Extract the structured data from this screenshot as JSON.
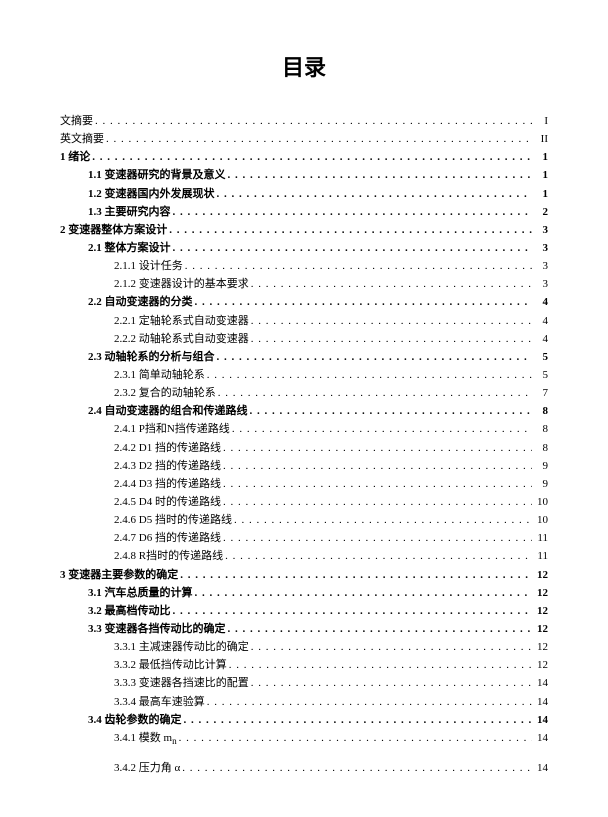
{
  "title": "目录",
  "entries": [
    {
      "label": "文摘要",
      "page": "I",
      "level": "lvl0nb"
    },
    {
      "label": "英文摘要",
      "page": "II",
      "level": "lvl0nb"
    },
    {
      "label": "1 绪论",
      "page": "1",
      "level": "lvl0"
    },
    {
      "label": "1.1 变速器研究的背景及意义",
      "page": "1",
      "level": "lvl1"
    },
    {
      "label": "1.2 变速器国内外发展现状",
      "page": "1",
      "level": "lvl1"
    },
    {
      "label": "1.3 主要研究内容",
      "page": "2",
      "level": "lvl1"
    },
    {
      "label": "2 变速器整体方案设计",
      "page": "3",
      "level": "lvl0"
    },
    {
      "label": "2.1 整体方案设计",
      "page": "3",
      "level": "lvl1"
    },
    {
      "label": "2.1.1 设计任务",
      "page": "3",
      "level": "lvl2"
    },
    {
      "label": "2.1.2 变速器设计的基本要求",
      "page": "3",
      "level": "lvl2"
    },
    {
      "label": "2.2 自动变速器的分类",
      "page": "4",
      "level": "lvl1"
    },
    {
      "label": "2.2.1 定轴轮系式自动变速器",
      "page": "4",
      "level": "lvl2"
    },
    {
      "label": "2.2.2 动轴轮系式自动变速器",
      "page": "4",
      "level": "lvl2"
    },
    {
      "label": "2.3 动轴轮系的分析与组合",
      "page": "5",
      "level": "lvl1"
    },
    {
      "label": "2.3.1 简单动轴轮系",
      "page": "5",
      "level": "lvl2"
    },
    {
      "label": "2.3.2 复合的动轴轮系",
      "page": "7",
      "level": "lvl2"
    },
    {
      "label": "2.4 自动变速器的组合和传递路线",
      "page": "8",
      "level": "lvl1"
    },
    {
      "label": "2.4.1 P挡和N挡传递路线",
      "page": "8",
      "level": "lvl2"
    },
    {
      "label": "2.4.2 D1 挡的传递路线",
      "page": "8",
      "level": "lvl2"
    },
    {
      "label": "2.4.3 D2 挡的传递路线",
      "page": "9",
      "level": "lvl2"
    },
    {
      "label": "2.4.4 D3 挡的传递路线",
      "page": "9",
      "level": "lvl2"
    },
    {
      "label": "2.4.5 D4 时的传递路线",
      "page": "10",
      "level": "lvl2"
    },
    {
      "label": "2.4.6 D5 挡时的传递路线",
      "page": "10",
      "level": "lvl2"
    },
    {
      "label": "2.4.7 D6 挡的传递路线",
      "page": "11",
      "level": "lvl2"
    },
    {
      "label": "2.4.8 R挡时的传递路线",
      "page": "11",
      "level": "lvl2"
    },
    {
      "label": "3 变速器主要参数的确定",
      "page": "12",
      "level": "lvl0"
    },
    {
      "label": "3.1 汽车总质量的计算",
      "page": "12",
      "level": "lvl1"
    },
    {
      "label": "3.2 最高档传动比",
      "page": "12",
      "level": "lvl1"
    },
    {
      "label": "3.3 变速器各挡传动比的确定",
      "page": "12",
      "level": "lvl1"
    },
    {
      "label": "3.3.1 主减速器传动比的确定",
      "page": "12",
      "level": "lvl2"
    },
    {
      "label": "3.3.2 最低挡传动比计算",
      "page": "12",
      "level": "lvl2"
    },
    {
      "label": "3.3.3 变速器各挡速比的配置",
      "page": "14",
      "level": "lvl2"
    },
    {
      "label": "3.3.4 最高车速验算",
      "page": "14",
      "level": "lvl2"
    },
    {
      "label": "3.4 齿轮参数的确定",
      "page": "14",
      "level": "lvl1"
    },
    {
      "label": "3.4.1 模数 m<sub>n</sub>",
      "page": "14",
      "level": "lvl2",
      "html": true
    },
    {
      "gap": true
    },
    {
      "label": "3.4.2 压力角 α",
      "page": "14",
      "level": "lvl2"
    }
  ]
}
